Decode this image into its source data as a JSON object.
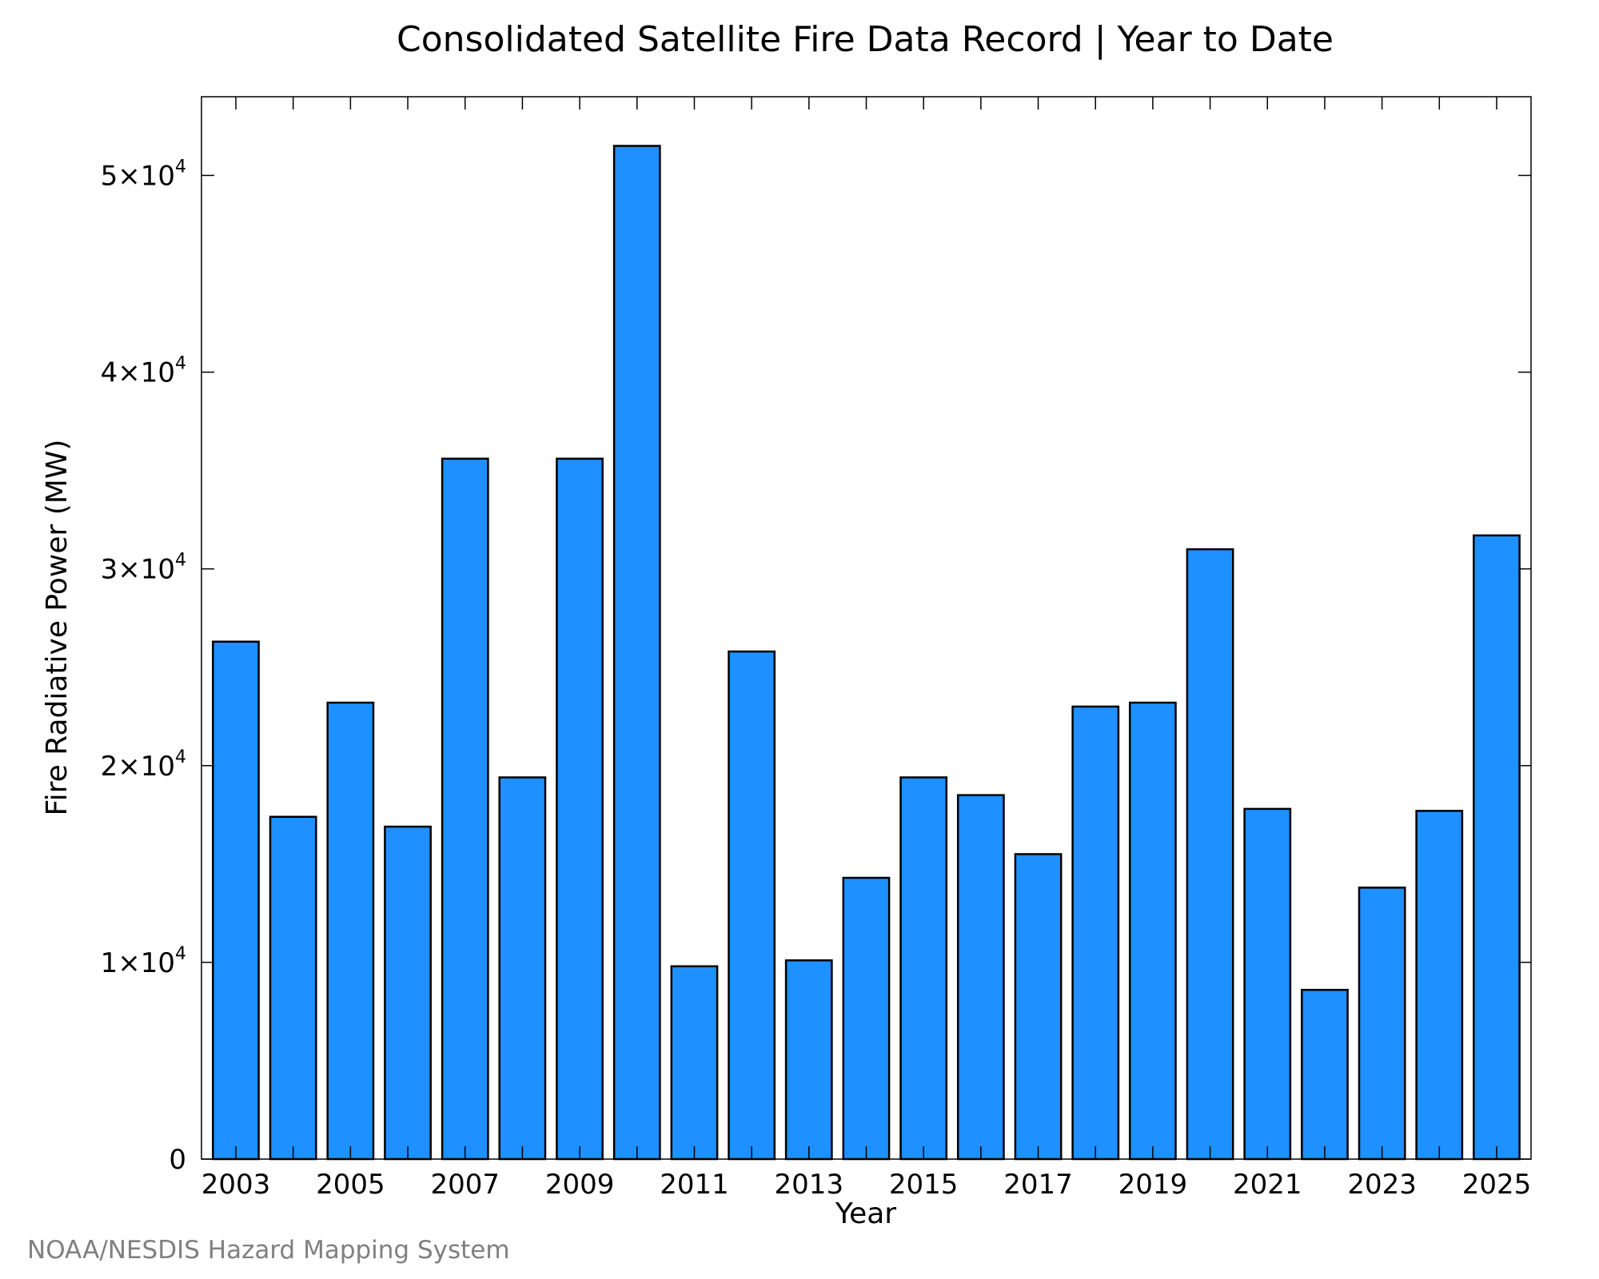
{
  "chart_data": {
    "type": "bar",
    "title": "Consolidated Satellite Fire Data Record | Year to Date",
    "xlabel": "Year",
    "ylabel": "Fire Radiative Power (MW)",
    "credit": "NOAA/NESDIS Hazard Mapping System",
    "categories": [
      2003,
      2004,
      2005,
      2006,
      2007,
      2008,
      2009,
      2010,
      2011,
      2012,
      2013,
      2014,
      2015,
      2016,
      2017,
      2018,
      2019,
      2020,
      2021,
      2022,
      2023,
      2024,
      2025
    ],
    "values": [
      26300,
      17400,
      23200,
      16900,
      35600,
      19400,
      35600,
      51500,
      9800,
      25800,
      10100,
      14300,
      19400,
      18500,
      15500,
      23000,
      23200,
      31000,
      17800,
      8600,
      13800,
      17700,
      31700
    ],
    "ylim": [
      0,
      54000
    ],
    "xlim": [
      2002.4,
      2025.6
    ],
    "y_ticks": [
      {
        "value": 0,
        "mantissa": "0",
        "exponent": ""
      },
      {
        "value": 10000,
        "mantissa": "1×10",
        "exponent": "4"
      },
      {
        "value": 20000,
        "mantissa": "2×10",
        "exponent": "4"
      },
      {
        "value": 30000,
        "mantissa": "3×10",
        "exponent": "4"
      },
      {
        "value": 40000,
        "mantissa": "4×10",
        "exponent": "4"
      },
      {
        "value": 50000,
        "mantissa": "5×10",
        "exponent": "4"
      }
    ],
    "x_tick_labels": [
      2003,
      2005,
      2007,
      2009,
      2011,
      2013,
      2015,
      2017,
      2019,
      2021,
      2023,
      2025
    ],
    "bar_color": "#1e90ff",
    "bar_edge_color": "#000000",
    "grid": false,
    "legend": "none"
  }
}
